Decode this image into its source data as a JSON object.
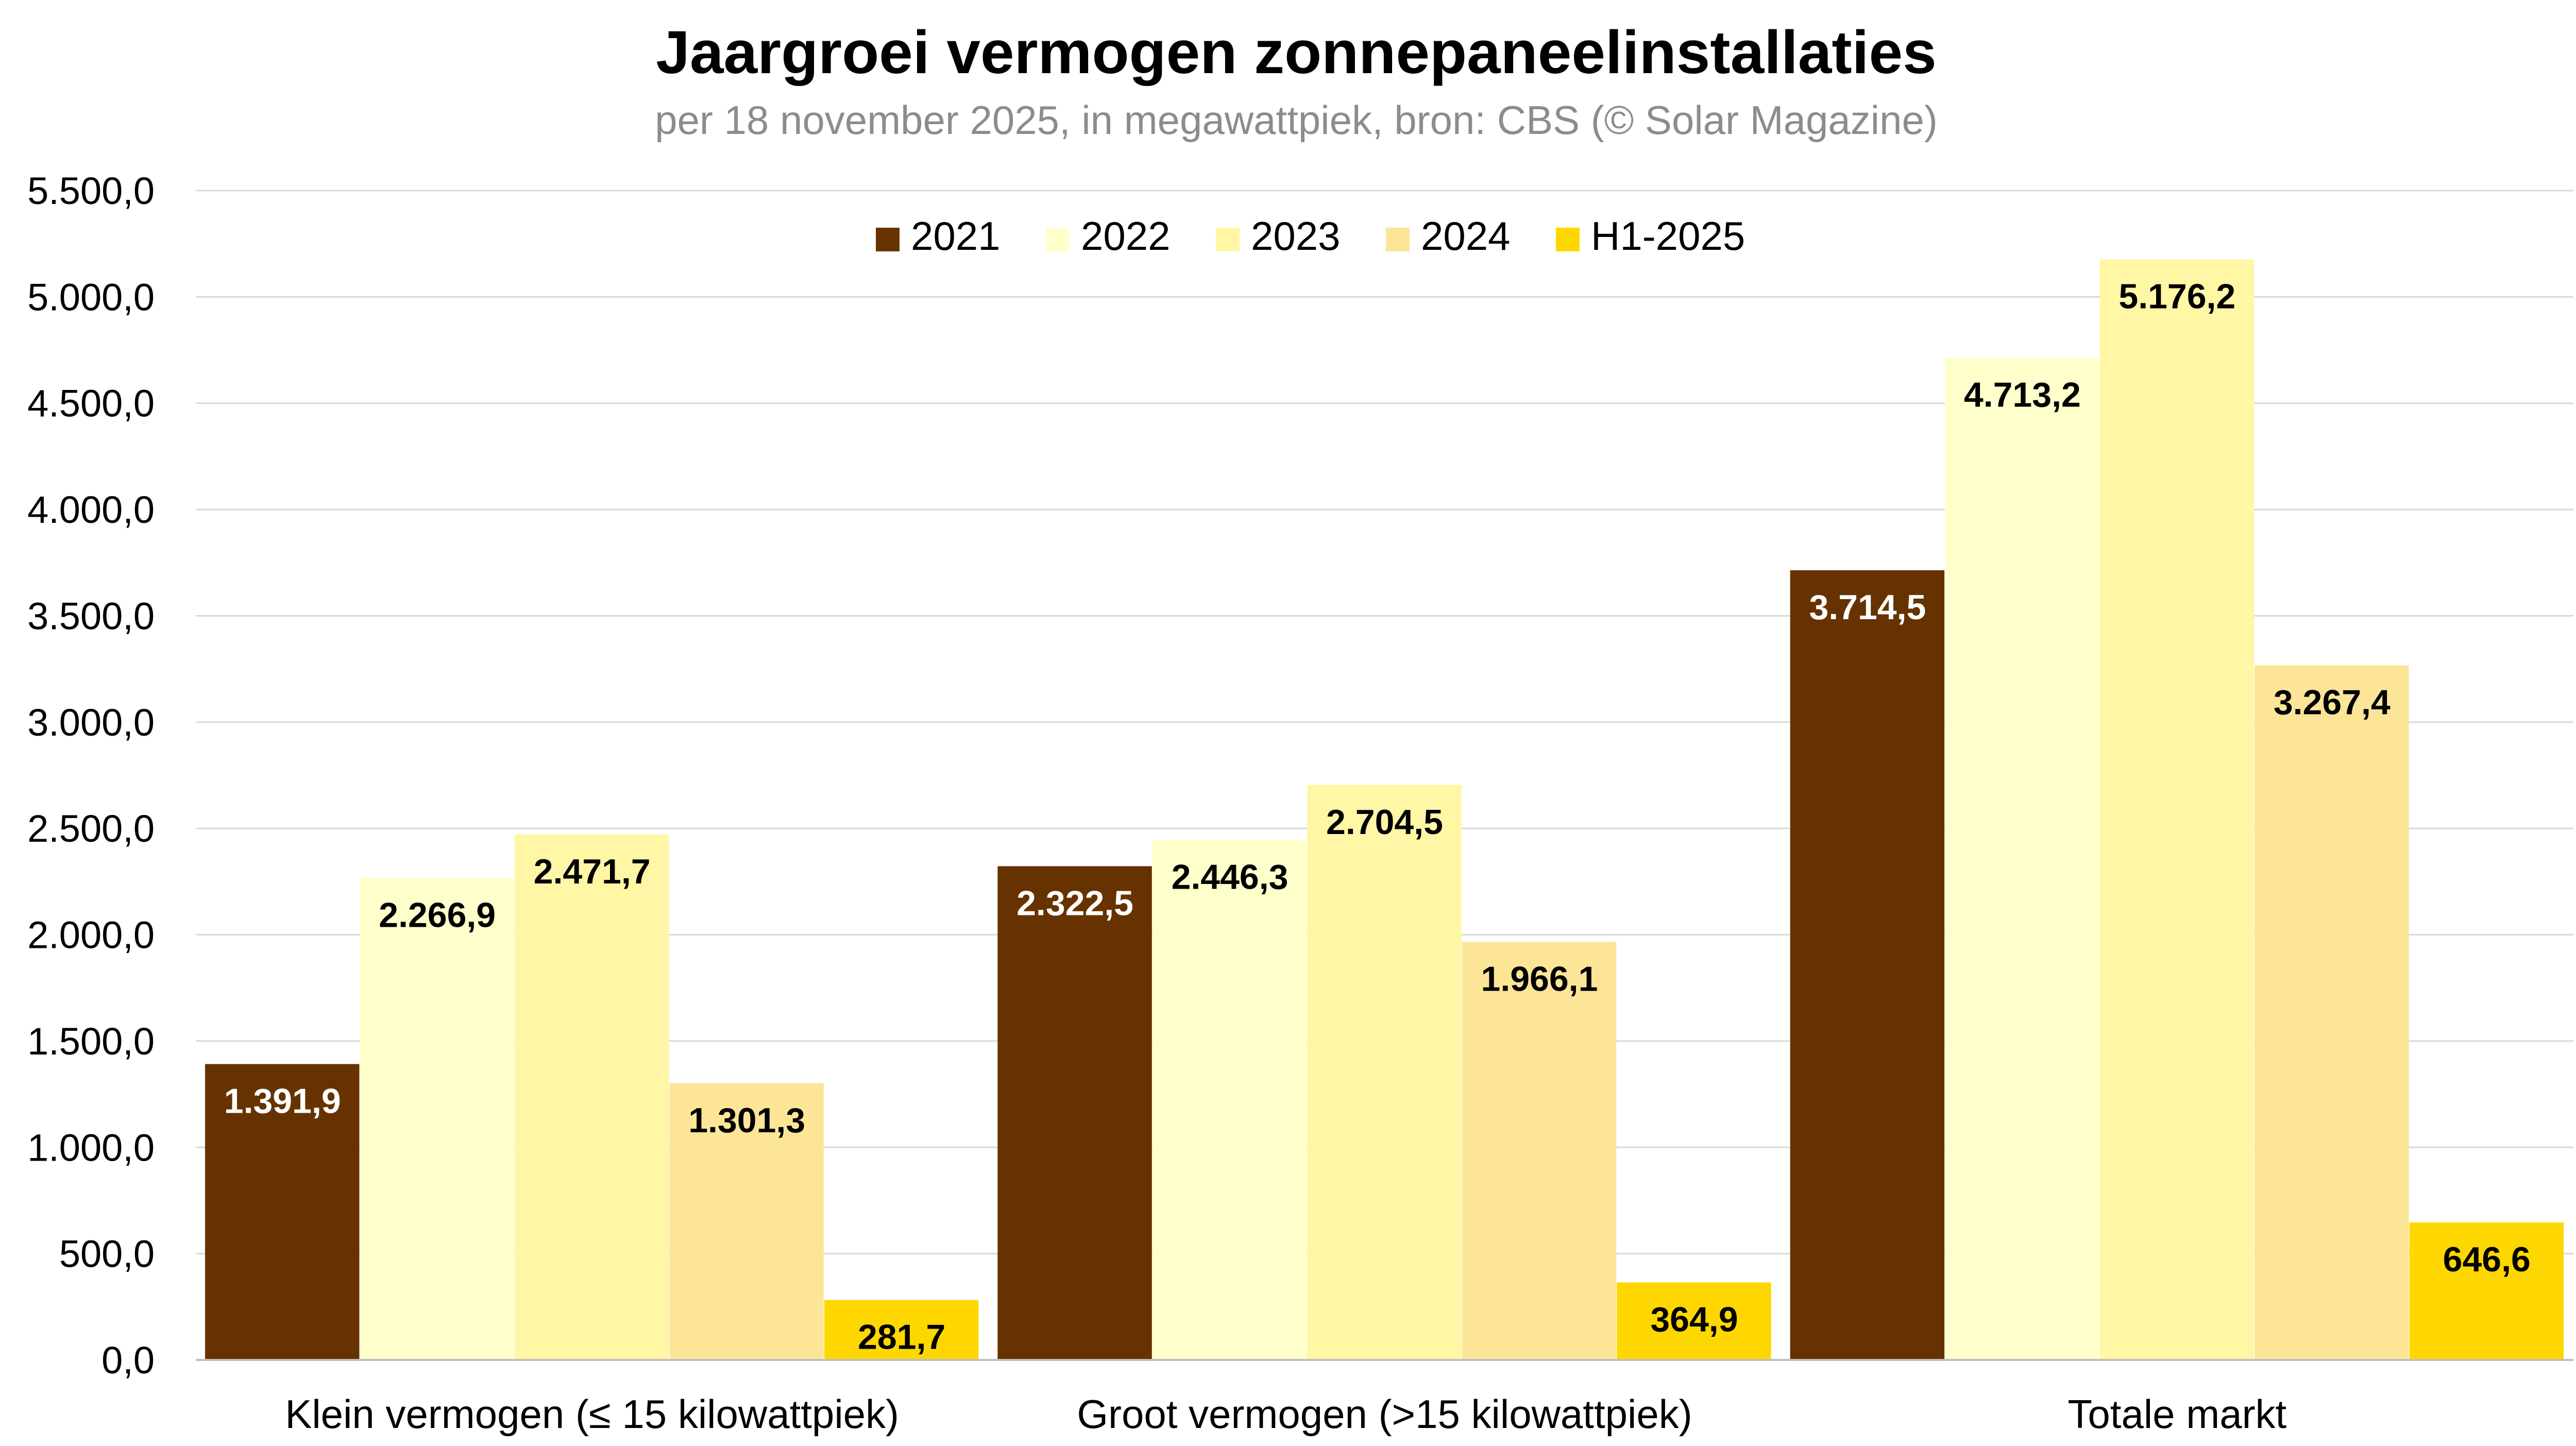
{
  "chart_data": {
    "type": "bar",
    "title": "Jaargroei vermogen zonnepaneelinstallaties",
    "subtitle": "per 18 november 2025, in megawattpiek, bron: CBS (© Solar Magazine)",
    "xlabel": "",
    "ylabel": "",
    "ylim": [
      0,
      5500
    ],
    "yticks": [
      0,
      500,
      1000,
      1500,
      2000,
      2500,
      3000,
      3500,
      4000,
      4500,
      5000,
      5500
    ],
    "ytick_labels": [
      "0,0",
      "500,0",
      "1.000,0",
      "1.500,0",
      "2.000,0",
      "2.500,0",
      "3.000,0",
      "3.500,0",
      "4.000,0",
      "4.500,0",
      "5.000,0",
      "5.500,0"
    ],
    "grid": true,
    "legend_position": "top-center",
    "categories": [
      "Klein vermogen (≤ 15 kilowattpiek)",
      "Groot vermogen (>15 kilowattpiek)",
      "Totale markt"
    ],
    "series": [
      {
        "name": "2021",
        "color": "#663300",
        "label_color": "#ffffff",
        "values": [
          1391.9,
          2322.5,
          3714.5
        ],
        "labels": [
          "1.391,9",
          "2.322,5",
          "3.714,5"
        ]
      },
      {
        "name": "2022",
        "color": "#ffffcc",
        "label_color": "#000000",
        "values": [
          2266.9,
          2446.3,
          4713.2
        ],
        "labels": [
          "2.266,9",
          "2.446,3",
          "4.713,2"
        ]
      },
      {
        "name": "2023",
        "color": "#fff6a6",
        "label_color": "#000000",
        "values": [
          2471.7,
          2704.5,
          5176.2
        ],
        "labels": [
          "2.471,7",
          "2.704,5",
          "5.176,2"
        ]
      },
      {
        "name": "2024",
        "color": "#fde598",
        "label_color": "#000000",
        "values": [
          1301.3,
          1966.1,
          3267.4
        ],
        "labels": [
          "1.301,3",
          "1.966,1",
          "3.267,4"
        ]
      },
      {
        "name": "H1-2025",
        "color": "#ffd700",
        "label_color": "#000000",
        "values": [
          281.7,
          364.9,
          646.6
        ],
        "labels": [
          "281,7",
          "364,9",
          "646,6"
        ]
      }
    ]
  }
}
